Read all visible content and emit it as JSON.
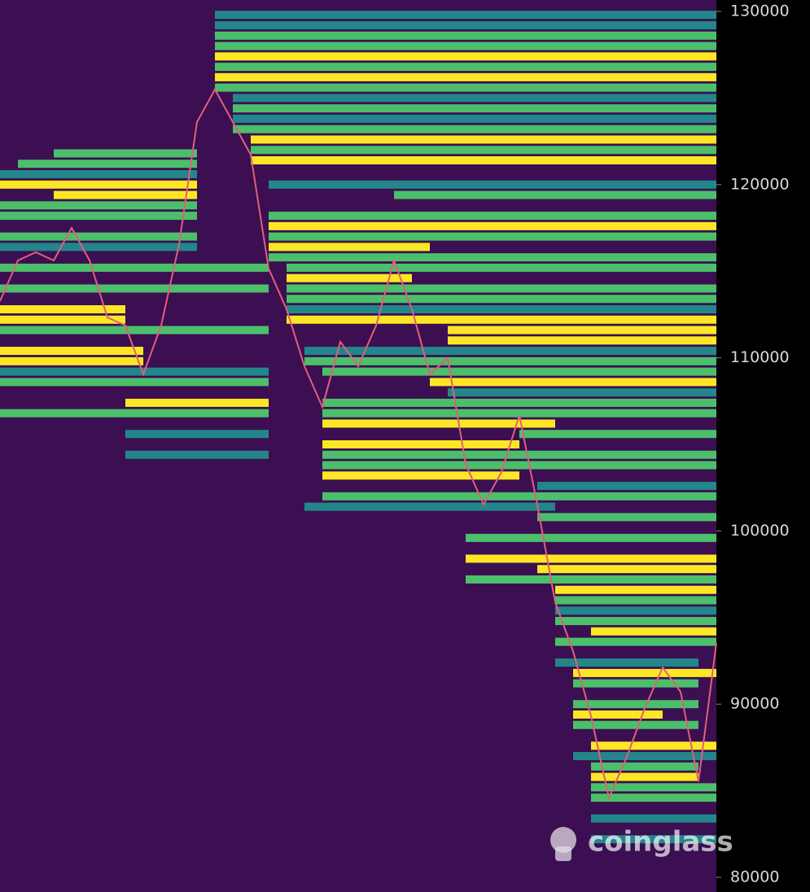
{
  "chart_data": {
    "type": "heatmap",
    "watermark": "coinglass",
    "ylim": [
      80000,
      130000
    ],
    "yticks": [
      80000,
      90000,
      100000,
      110000,
      120000,
      130000
    ],
    "background": "#3b0f52",
    "colorscale": [
      "#31437f",
      "#23868a",
      "#4cbf6b",
      "#fde725"
    ],
    "line_color": "#e0607a",
    "x": [
      0,
      1,
      2,
      3,
      4,
      5,
      6,
      7,
      8,
      9,
      10,
      11,
      12,
      13,
      14,
      15,
      16,
      17,
      18,
      19,
      20,
      21,
      22,
      23,
      24,
      25,
      26,
      27,
      28,
      29,
      30,
      31,
      32,
      33,
      34,
      35,
      36,
      37,
      38,
      39,
      40
    ],
    "values": [
      113270,
      115620,
      116090,
      115620,
      117500,
      115620,
      112330,
      111860,
      109040,
      111860,
      116560,
      123610,
      125490,
      123610,
      121730,
      115150,
      112800,
      109510,
      107160,
      110920,
      109510,
      111860,
      115620,
      112800,
      109040,
      109980,
      103870,
      101520,
      103400,
      106690,
      101520,
      95880,
      93060,
      89300,
      84600,
      86950,
      89770,
      92120,
      90710,
      85540,
      93530
    ],
    "bands": [
      {
        "price": 129800,
        "x0": 12,
        "x1": 40,
        "level": 0.4
      },
      {
        "price": 129200,
        "x0": 12,
        "x1": 40,
        "level": 0.3
      },
      {
        "price": 128600,
        "x0": 12,
        "x1": 40,
        "level": 0.5
      },
      {
        "price": 128000,
        "x0": 12,
        "x1": 40,
        "level": 0.7
      },
      {
        "price": 127400,
        "x0": 12,
        "x1": 40,
        "level": 0.9
      },
      {
        "price": 126800,
        "x0": 12,
        "x1": 40,
        "level": 0.6
      },
      {
        "price": 126200,
        "x0": 12,
        "x1": 40,
        "level": 1.0
      },
      {
        "price": 125600,
        "x0": 12,
        "x1": 40,
        "level": 0.5
      },
      {
        "price": 125000,
        "x0": 13,
        "x1": 40,
        "level": 0.4
      },
      {
        "price": 124400,
        "x0": 13,
        "x1": 40,
        "level": 0.6
      },
      {
        "price": 123800,
        "x0": 13,
        "x1": 40,
        "level": 0.3
      },
      {
        "price": 123200,
        "x0": 13,
        "x1": 40,
        "level": 0.7
      },
      {
        "price": 122600,
        "x0": 14,
        "x1": 40,
        "level": 0.9
      },
      {
        "price": 122000,
        "x0": 14,
        "x1": 40,
        "level": 0.5
      },
      {
        "price": 121400,
        "x0": 14,
        "x1": 40,
        "level": 1.0
      },
      {
        "price": 120000,
        "x0": 15,
        "x1": 40,
        "level": 0.3
      },
      {
        "price": 119400,
        "x0": 22,
        "x1": 40,
        "level": 0.5
      },
      {
        "price": 118200,
        "x0": 15,
        "x1": 40,
        "level": 0.7
      },
      {
        "price": 117600,
        "x0": 15,
        "x1": 40,
        "level": 1.0
      },
      {
        "price": 117000,
        "x0": 15,
        "x1": 40,
        "level": 0.6
      },
      {
        "price": 116400,
        "x0": 15,
        "x1": 23,
        "level": 0.9
      },
      {
        "price": 115800,
        "x0": 15,
        "x1": 40,
        "level": 0.5
      },
      {
        "price": 115200,
        "x0": 16,
        "x1": 40,
        "level": 0.7
      },
      {
        "price": 114600,
        "x0": 16,
        "x1": 22,
        "level": 1.0
      },
      {
        "price": 114000,
        "x0": 16,
        "x1": 40,
        "level": 0.5
      },
      {
        "price": 113400,
        "x0": 16,
        "x1": 40,
        "level": 0.6
      },
      {
        "price": 112800,
        "x0": 16,
        "x1": 40,
        "level": 0.4
      },
      {
        "price": 112200,
        "x0": 16,
        "x1": 40,
        "level": 0.8
      },
      {
        "price": 111600,
        "x0": 25,
        "x1": 40,
        "level": 1.0
      },
      {
        "price": 111000,
        "x0": 25,
        "x1": 40,
        "level": 1.0
      },
      {
        "price": 110400,
        "x0": 17,
        "x1": 40,
        "level": 0.4
      },
      {
        "price": 109800,
        "x0": 17,
        "x1": 40,
        "level": 0.6
      },
      {
        "price": 109200,
        "x0": 18,
        "x1": 40,
        "level": 0.5
      },
      {
        "price": 108600,
        "x0": 24,
        "x1": 40,
        "level": 0.9
      },
      {
        "price": 108000,
        "x0": 25,
        "x1": 40,
        "level": 0.3
      },
      {
        "price": 107400,
        "x0": 18,
        "x1": 40,
        "level": 0.6
      },
      {
        "price": 106800,
        "x0": 18,
        "x1": 40,
        "level": 0.5
      },
      {
        "price": 106200,
        "x0": 18,
        "x1": 30,
        "level": 0.8
      },
      {
        "price": 105600,
        "x0": 29,
        "x1": 40,
        "level": 0.7
      },
      {
        "price": 105000,
        "x0": 18,
        "x1": 28,
        "level": 1.0
      },
      {
        "price": 104400,
        "x0": 18,
        "x1": 40,
        "level": 0.5
      },
      {
        "price": 103800,
        "x0": 18,
        "x1": 40,
        "level": 0.6
      },
      {
        "price": 103200,
        "x0": 18,
        "x1": 28,
        "level": 0.9
      },
      {
        "price": 102600,
        "x0": 30,
        "x1": 40,
        "level": 0.4
      },
      {
        "price": 102000,
        "x0": 18,
        "x1": 40,
        "level": 0.6
      },
      {
        "price": 101400,
        "x0": 17,
        "x1": 30,
        "level": 0.3
      },
      {
        "price": 100800,
        "x0": 30,
        "x1": 40,
        "level": 0.7
      },
      {
        "price": 99600,
        "x0": 26,
        "x1": 40,
        "level": 0.5
      },
      {
        "price": 98400,
        "x0": 26,
        "x1": 40,
        "level": 0.8
      },
      {
        "price": 97800,
        "x0": 30,
        "x1": 40,
        "level": 1.0
      },
      {
        "price": 97200,
        "x0": 26,
        "x1": 40,
        "level": 0.6
      },
      {
        "price": 96600,
        "x0": 31,
        "x1": 40,
        "level": 0.9
      },
      {
        "price": 96000,
        "x0": 31,
        "x1": 40,
        "level": 0.5
      },
      {
        "price": 95400,
        "x0": 31,
        "x1": 40,
        "level": 0.3
      },
      {
        "price": 94800,
        "x0": 31,
        "x1": 40,
        "level": 0.7
      },
      {
        "price": 94200,
        "x0": 33,
        "x1": 40,
        "level": 1.0
      },
      {
        "price": 93600,
        "x0": 31,
        "x1": 40,
        "level": 0.6
      },
      {
        "price": 92400,
        "x0": 31,
        "x1": 38,
        "level": 0.4
      },
      {
        "price": 91800,
        "x0": 32,
        "x1": 40,
        "level": 0.9
      },
      {
        "price": 91200,
        "x0": 32,
        "x1": 38,
        "level": 0.5
      },
      {
        "price": 90000,
        "x0": 32,
        "x1": 38,
        "level": 0.7
      },
      {
        "price": 89400,
        "x0": 32,
        "x1": 36,
        "level": 1.0
      },
      {
        "price": 88800,
        "x0": 32,
        "x1": 38,
        "level": 0.6
      },
      {
        "price": 87600,
        "x0": 33,
        "x1": 39,
        "level": 0.9
      },
      {
        "price": 87000,
        "x0": 32,
        "x1": 39,
        "level": 0.4
      },
      {
        "price": 86400,
        "x0": 33,
        "x1": 38,
        "level": 0.7
      },
      {
        "price": 85800,
        "x0": 33,
        "x1": 38,
        "level": 1.0
      },
      {
        "price": 85200,
        "x0": 33,
        "x1": 40,
        "level": 0.5
      },
      {
        "price": 84600,
        "x0": 33,
        "x1": 40,
        "level": 0.6
      },
      {
        "price": 83400,
        "x0": 33,
        "x1": 40,
        "level": 0.4
      },
      {
        "price": 82200,
        "x0": 33,
        "x1": 40,
        "level": 0.3
      },
      {
        "price": 121800,
        "x0": 3,
        "x1": 10,
        "level": 0.5
      },
      {
        "price": 121200,
        "x0": 1,
        "x1": 10,
        "level": 0.6
      },
      {
        "price": 120600,
        "x0": 0,
        "x1": 10,
        "level": 0.3
      },
      {
        "price": 120000,
        "x0": 0,
        "x1": 10,
        "level": 0.9
      },
      {
        "price": 119400,
        "x0": 3,
        "x1": 10,
        "level": 1.0
      },
      {
        "price": 118800,
        "x0": 0,
        "x1": 10,
        "level": 0.5
      },
      {
        "price": 118200,
        "x0": 0,
        "x1": 10,
        "level": 0.7
      },
      {
        "price": 117000,
        "x0": 0,
        "x1": 10,
        "level": 0.6
      },
      {
        "price": 116400,
        "x0": 0,
        "x1": 10,
        "level": 0.4
      },
      {
        "price": 115200,
        "x0": 0,
        "x1": 14,
        "level": 0.7
      },
      {
        "price": 114000,
        "x0": 0,
        "x1": 14,
        "level": 0.5
      },
      {
        "price": 112800,
        "x0": 0,
        "x1": 6,
        "level": 1.0
      },
      {
        "price": 112200,
        "x0": 0,
        "x1": 6,
        "level": 0.9
      },
      {
        "price": 111600,
        "x0": 0,
        "x1": 14,
        "level": 0.5
      },
      {
        "price": 110400,
        "x0": 0,
        "x1": 7,
        "level": 1.0
      },
      {
        "price": 109800,
        "x0": 0,
        "x1": 7,
        "level": 0.9
      },
      {
        "price": 109200,
        "x0": 0,
        "x1": 14,
        "level": 0.4
      },
      {
        "price": 108600,
        "x0": 0,
        "x1": 14,
        "level": 0.6
      },
      {
        "price": 107400,
        "x0": 7,
        "x1": 14,
        "level": 1.0
      },
      {
        "price": 106800,
        "x0": 0,
        "x1": 14,
        "level": 0.5
      },
      {
        "price": 105600,
        "x0": 7,
        "x1": 14,
        "level": 0.3
      },
      {
        "price": 104400,
        "x0": 7,
        "x1": 14,
        "level": 0.4
      }
    ]
  }
}
